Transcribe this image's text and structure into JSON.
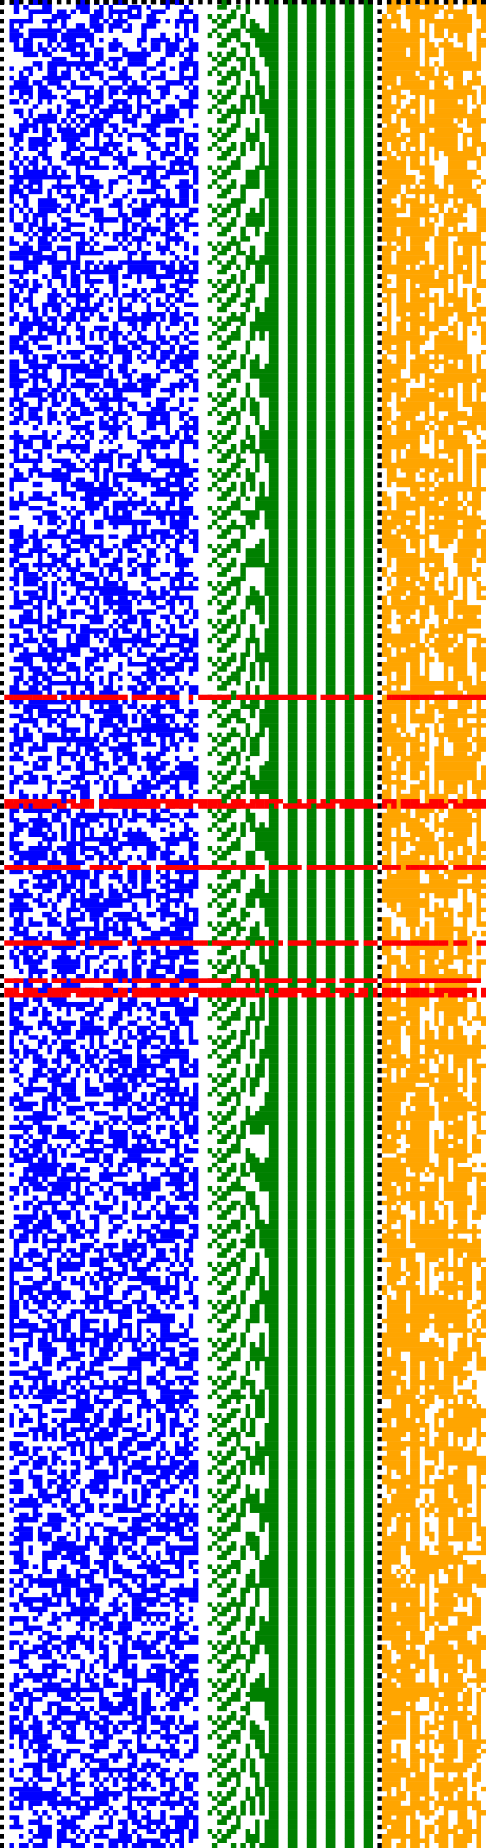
{
  "figure": {
    "cell_columns": 103,
    "cell_rows": 391,
    "colors": {
      "background": "#ffffff",
      "left_field": "#0000ff",
      "middle_bands": "#008000",
      "right_field": "#ffa500",
      "separator_dots": "#000000",
      "highlight_rows": "#ff0000"
    },
    "left_field": {
      "col_start": 2,
      "col_end": 41,
      "density": 0.53
    },
    "middle_bands": {
      "col_start": 43,
      "col_end": 79,
      "solid_columns": [
        57,
        58,
        61,
        62,
        65,
        66,
        69,
        70,
        73,
        74,
        77,
        78
      ]
    },
    "right_field": {
      "col_start": 81,
      "col_end": 102,
      "density": 0.5
    },
    "separator_columns": [
      0,
      80
    ],
    "highlight_rows": [
      147,
      169,
      170,
      183,
      199,
      207,
      209,
      210
    ]
  }
}
